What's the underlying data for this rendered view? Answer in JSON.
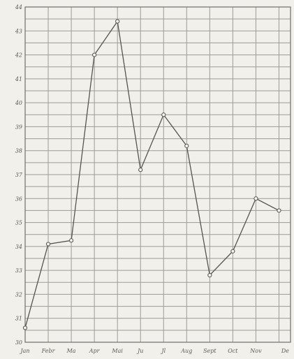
{
  "chart_data": {
    "type": "line",
    "title": "",
    "xlabel": "",
    "ylabel": "",
    "categories": [
      "Jan",
      "Febr",
      "Ma",
      "Apr",
      "Mai",
      "Ju",
      "Jl",
      "Aug",
      "Sept",
      "Oct",
      "Nov",
      "De"
    ],
    "y_ticks": [
      "44",
      "43",
      "42",
      "41",
      "40",
      "39",
      "38",
      "37",
      "36",
      "35",
      "34",
      "33",
      "32",
      "31",
      "30"
    ],
    "ylim": [
      30,
      44
    ],
    "grid": true,
    "series": [
      {
        "values": [
          30.6,
          34.1,
          34.25,
          42.0,
          43.4,
          37.2,
          39.5,
          38.2,
          32.8,
          33.8,
          36.0,
          35.5
        ]
      }
    ],
    "colors": {
      "background": "#f1f0ea",
      "line": "#55554f",
      "grid": "#9c9c98"
    }
  }
}
